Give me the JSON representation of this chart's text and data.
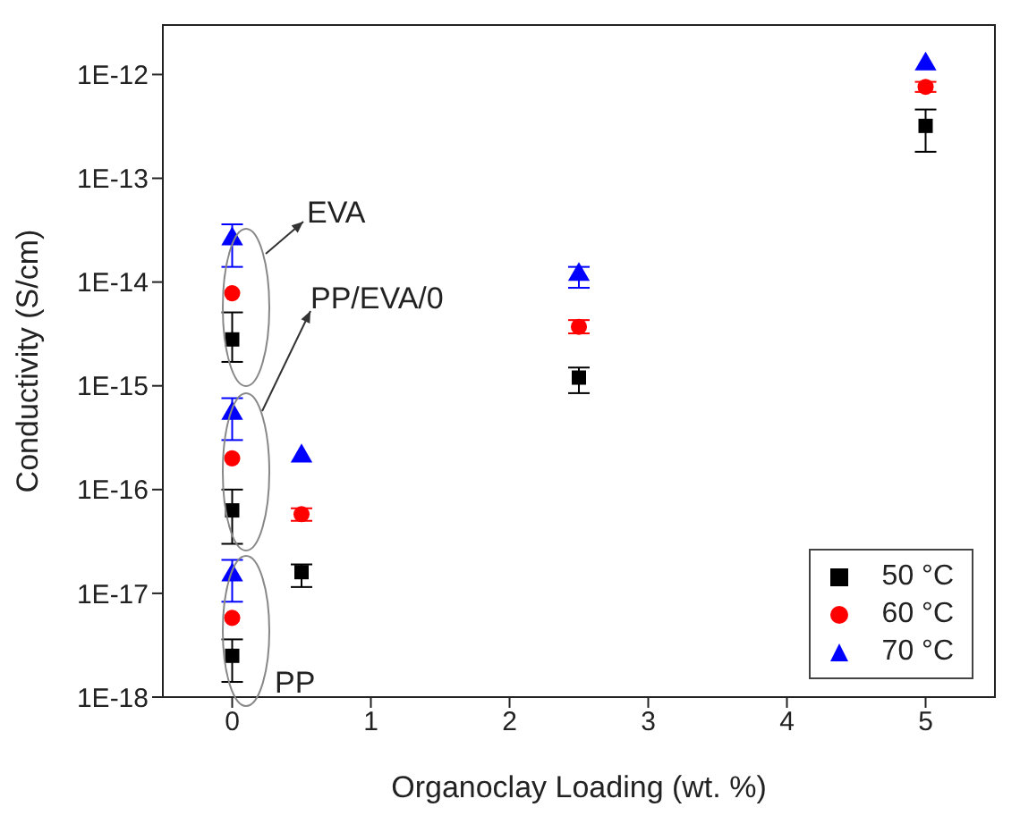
{
  "chart_data": {
    "type": "scatter",
    "xlabel": "Organoclay Loading (wt. %)",
    "ylabel": "Conductivity (S/cm)",
    "x": [
      0,
      0,
      0,
      0.5,
      2.5,
      5
    ],
    "xlim": [
      -0.5,
      5.5
    ],
    "xticks": [
      0,
      1,
      2,
      3,
      4,
      5
    ],
    "ylim": [
      1e-18,
      3e-12
    ],
    "log": "y",
    "yticks": [
      {
        "value": 1e-18,
        "label": "1E-18"
      },
      {
        "value": 1e-17,
        "label": "1E-17"
      },
      {
        "value": 1e-16,
        "label": "1E-16"
      },
      {
        "value": 1e-15,
        "label": "1E-15"
      },
      {
        "value": 1e-14,
        "label": "1E-14"
      },
      {
        "value": 1e-13,
        "label": "1E-13"
      },
      {
        "value": 1e-12,
        "label": "1E-12"
      }
    ],
    "series": [
      {
        "name": "50 °C",
        "color": "#000000",
        "marker": "square",
        "values": [
          2.8e-15,
          6.3e-17,
          2.5e-18,
          1.6e-17,
          1.2e-15,
          3.2e-13
        ],
        "errors": [
          [
            1.7e-15,
            5.1e-15
          ],
          [
            3e-17,
            1e-16
          ],
          [
            1.4e-18,
            3.6e-18
          ],
          [
            1.15e-17,
            1.9e-17
          ],
          [
            8.5e-16,
            1.5e-15
          ],
          [
            1.8e-13,
            4.6e-13
          ]
        ]
      },
      {
        "name": "60 °C",
        "color": "#ff0000",
        "marker": "circle",
        "values": [
          7.8e-15,
          2e-16,
          5.8e-18,
          5.8e-17,
          3.7e-15,
          7.6e-13
        ],
        "errors": [
          null,
          null,
          null,
          [
            5e-17,
            6.6e-17
          ],
          [
            3.2e-15,
            4.3e-15
          ],
          [
            6.8e-13,
            8.5e-13
          ]
        ]
      },
      {
        "name": "70 °C",
        "color": "#0000ff",
        "marker": "triangle",
        "values": [
          2.6e-14,
          5.4e-16,
          1.5e-17,
          2.1e-16,
          1.18e-14,
          1.26e-12
        ],
        "errors": [
          [
            1.4e-14,
            3.6e-14
          ],
          [
            3e-16,
            7.6e-16
          ],
          [
            8.3e-18,
            2.1e-17
          ],
          null,
          [
            8.8e-15,
            1.4e-14
          ],
          null
        ]
      }
    ],
    "annotations": [
      "EVA",
      "PP/EVA/0",
      "PP"
    ],
    "legend": "bottom right",
    "grid": false
  }
}
